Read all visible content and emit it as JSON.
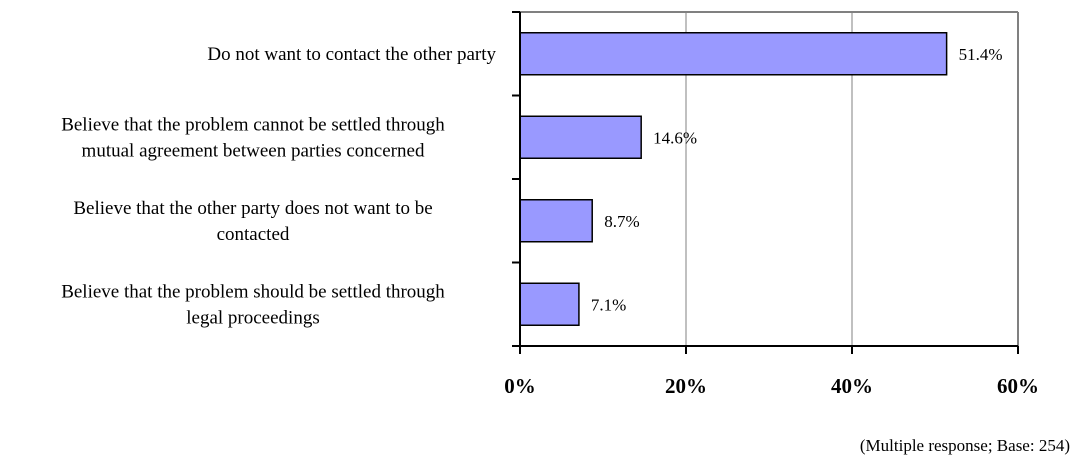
{
  "chart_data": {
    "type": "bar",
    "orientation": "horizontal",
    "categories": [
      [
        "Do not want to contact the other party"
      ],
      [
        "Believe that the problem cannot be settled through",
        "mutual agreement between parties concerned"
      ],
      [
        "Believe that the other party does not want to be",
        "contacted"
      ],
      [
        "Believe that the problem should be settled through",
        "legal proceedings"
      ]
    ],
    "values": [
      51.4,
      14.6,
      8.7,
      7.1
    ],
    "value_labels": [
      "51.4%",
      "14.6%",
      "8.7%",
      "7.1%"
    ],
    "xlim": [
      0,
      60
    ],
    "xticks": [
      0,
      20,
      40,
      60
    ],
    "xtick_labels": [
      "0%",
      "20%",
      "40%",
      "60%"
    ],
    "grid": true,
    "bar_color": "#9999ff",
    "grid_color": "#c0c0c0",
    "footnote": "(Multiple response; Base: 254)"
  }
}
